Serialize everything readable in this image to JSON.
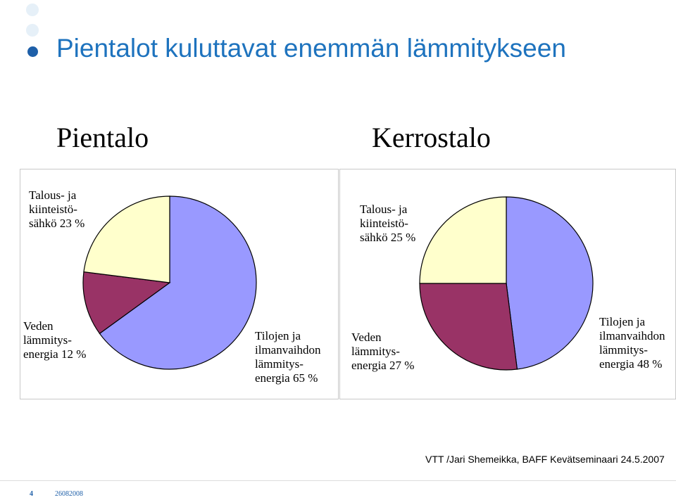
{
  "slide": {
    "title": "Pientalot kuluttavat enemmän lämmitykseen",
    "footer_credit": "VTT /Jari Shemeikka, BAFF Kevätseminaari 24.5.2007",
    "page_number": "4",
    "footer_date": "26082008"
  },
  "colors": {
    "title": "#1e73be",
    "slice_electricity": "#ffffcc",
    "slice_water": "#993366",
    "slice_ventilation": "#9999ff"
  },
  "chart_data": [
    {
      "type": "pie",
      "title": "Pientalo",
      "series": [
        {
          "label_lines": [
            "Talous- ja",
            "kiinteistö-",
            "sähkö 23 %"
          ],
          "value": 23,
          "color": "#ffffcc"
        },
        {
          "label_lines": [
            "Veden",
            "lämmitys-",
            "energia 12 %"
          ],
          "value": 12,
          "color": "#993366"
        },
        {
          "label_lines": [
            "Tilojen ja",
            "ilmanvaihdon",
            "lämmitys-",
            "energia 65 %"
          ],
          "value": 65,
          "color": "#9999ff"
        }
      ]
    },
    {
      "type": "pie",
      "title": "Kerrostalo",
      "series": [
        {
          "label_lines": [
            "Talous- ja",
            "kiinteistö-",
            "sähkö 25 %"
          ],
          "value": 25,
          "color": "#ffffcc"
        },
        {
          "label_lines": [
            "Veden",
            "lämmitys-",
            "energia 27 %"
          ],
          "value": 27,
          "color": "#993366"
        },
        {
          "label_lines": [
            "Tilojen ja",
            "ilmanvaihdon",
            "lämmitys-",
            "energia 48 %"
          ],
          "value": 48,
          "color": "#9999ff"
        }
      ]
    }
  ]
}
